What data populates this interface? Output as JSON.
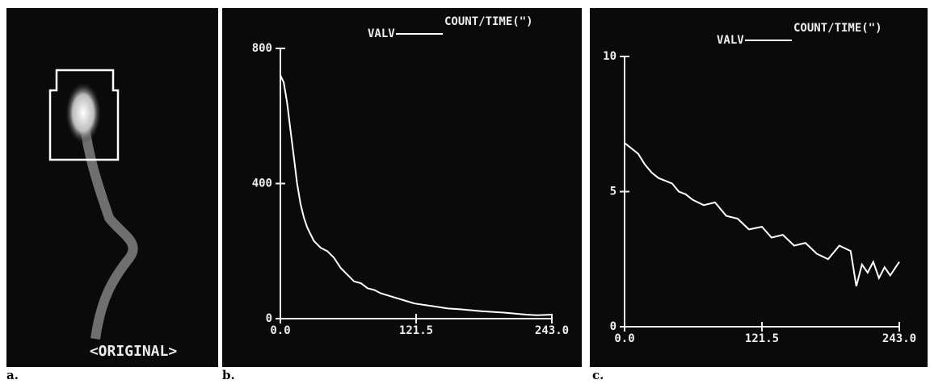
{
  "panel_labels": [
    "a.",
    "b.",
    "c."
  ],
  "image_caption": "<ORIGINAL>",
  "chart_data": [
    {
      "type": "line",
      "ylabel": "COUNT/TIME(\")",
      "xlim": [
        0,
        243
      ],
      "xticks": [
        {
          "value": 0,
          "label": "0.0"
        },
        121.5,
        {
          "value": 243,
          "label": "243.0"
        }
      ],
      "ylim": [
        0,
        800
      ],
      "yticks": [
        0,
        400,
        800
      ],
      "x": [
        0,
        3,
        6,
        9,
        12,
        15,
        18,
        21,
        24,
        27,
        30,
        36,
        42,
        48,
        54,
        60,
        66,
        72,
        78,
        84,
        90,
        100,
        110,
        120,
        130,
        140,
        150,
        160,
        170,
        180,
        190,
        200,
        210,
        220,
        230,
        243
      ],
      "series": [
        {
          "name": "VALV",
          "color": "#ffffff",
          "values": [
            720,
            700,
            640,
            560,
            480,
            400,
            340,
            300,
            270,
            250,
            230,
            210,
            200,
            180,
            150,
            130,
            110,
            105,
            90,
            85,
            75,
            65,
            55,
            45,
            40,
            35,
            30,
            28,
            25,
            22,
            20,
            18,
            15,
            12,
            10,
            12
          ]
        }
      ]
    },
    {
      "type": "line",
      "ylabel": "COUNT/TIME(\")",
      "xlim": [
        0,
        243
      ],
      "xticks": [
        {
          "value": 0,
          "label": "0.0"
        },
        121.5,
        {
          "value": 243,
          "label": "243.0"
        }
      ],
      "ylim": [
        0,
        10
      ],
      "yticks": [
        0,
        5,
        10
      ],
      "x": [
        0,
        6,
        12,
        18,
        24,
        30,
        36,
        42,
        48,
        54,
        60,
        70,
        80,
        90,
        100,
        110,
        121.5,
        130,
        140,
        150,
        160,
        170,
        180,
        190,
        200,
        205,
        210,
        215,
        220,
        225,
        230,
        235,
        243
      ],
      "series": [
        {
          "name": "VALV",
          "color": "#ffffff",
          "values": [
            6.8,
            6.6,
            6.4,
            6.0,
            5.7,
            5.5,
            5.4,
            5.3,
            5.0,
            4.9,
            4.7,
            4.5,
            4.6,
            4.1,
            4.0,
            3.6,
            3.7,
            3.3,
            3.4,
            3.0,
            3.1,
            2.7,
            2.5,
            3.0,
            2.8,
            1.5,
            2.3,
            2.0,
            2.4,
            1.8,
            2.2,
            1.9,
            2.4
          ]
        }
      ]
    }
  ]
}
